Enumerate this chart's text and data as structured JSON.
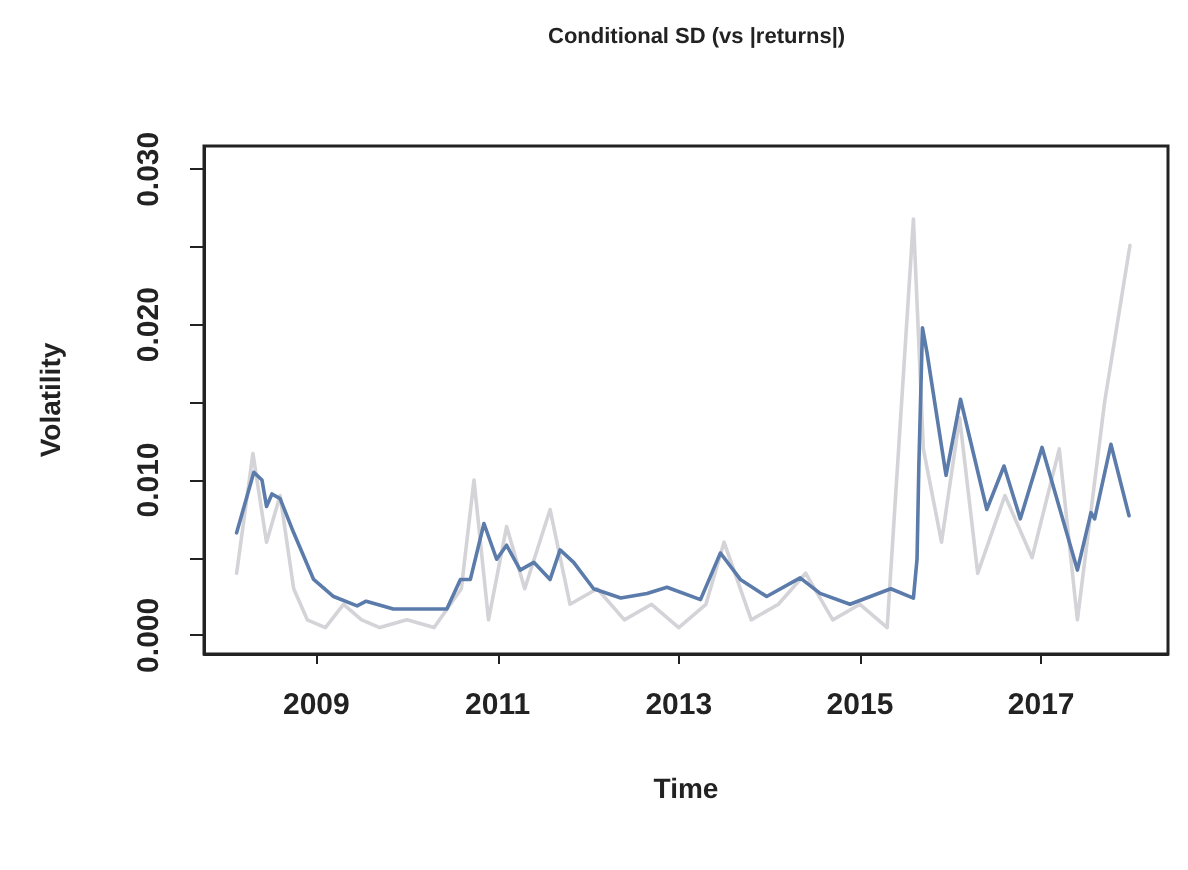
{
  "chart_data": {
    "type": "line",
    "title": "Conditional SD (vs |returns|)",
    "xlabel": "Time",
    "ylabel": "Volatility",
    "xlim": [
      2007.76,
      2018.4
    ],
    "xticks": [
      2009,
      2011,
      2013,
      2015,
      2017
    ],
    "ylim": [
      -0.0012,
      0.0315
    ],
    "yticks": [
      {
        "value": 0,
        "label": "0.000"
      },
      {
        "value": 0.005,
        "label": null
      },
      {
        "value": 0.01,
        "label": "0.010"
      },
      {
        "value": 0.015,
        "label": null
      },
      {
        "value": 0.02,
        "label": "0.020"
      },
      {
        "value": 0.025,
        "label": null
      },
      {
        "value": 0.03,
        "label": "0.030"
      }
    ],
    "grid": false,
    "marker": "none",
    "line_style": "solid",
    "series": [
      {
        "color": "#d4d4d8",
        "x": [
          2008.12,
          2008.3,
          2008.45,
          2008.6,
          2008.75,
          2008.9,
          2009.1,
          2009.3,
          2009.5,
          2009.7,
          2010.0,
          2010.3,
          2010.6,
          2010.74,
          2010.9,
          2011.1,
          2011.3,
          2011.58,
          2011.8,
          2012.1,
          2012.4,
          2012.7,
          2013.0,
          2013.3,
          2013.5,
          2013.8,
          2014.1,
          2014.4,
          2014.7,
          2015.0,
          2015.3,
          2015.59,
          2015.7,
          2015.9,
          2016.1,
          2016.3,
          2016.6,
          2016.9,
          2017.2,
          2017.4,
          2017.7,
          2017.98
        ],
        "values": [
          0.004,
          0.0117,
          0.006,
          0.009,
          0.003,
          0.001,
          0.0005,
          0.002,
          0.001,
          0.0005,
          0.001,
          0.0005,
          0.003,
          0.01,
          0.001,
          0.007,
          0.003,
          0.0081,
          0.002,
          0.003,
          0.001,
          0.002,
          0.0005,
          0.002,
          0.006,
          0.001,
          0.002,
          0.004,
          0.001,
          0.002,
          0.0005,
          0.0268,
          0.012,
          0.006,
          0.014,
          0.004,
          0.009,
          0.005,
          0.012,
          0.001,
          0.015,
          0.0251
        ]
      },
      {
        "color": "#5b7bab",
        "x": [
          2008.12,
          2008.31,
          2008.4,
          2008.45,
          2008.51,
          2008.6,
          2008.75,
          2008.97,
          2009.19,
          2009.45,
          2009.55,
          2009.85,
          2010.44,
          2010.59,
          2010.7,
          2010.85,
          2010.99,
          2011.1,
          2011.25,
          2011.4,
          2011.58,
          2011.69,
          2011.84,
          2012.06,
          2012.36,
          2012.65,
          2012.87,
          2013.24,
          2013.46,
          2013.68,
          2013.97,
          2014.34,
          2014.56,
          2014.89,
          2015.34,
          2015.59,
          2015.63,
          2015.65,
          2015.69,
          2015.74,
          2015.95,
          2016.11,
          2016.4,
          2016.59,
          2016.77,
          2017.01,
          2017.4,
          2017.55,
          2017.59,
          2017.77,
          2017.97
        ],
        "values": [
          0.0066,
          0.0105,
          0.01,
          0.0083,
          0.0091,
          0.0088,
          0.0066,
          0.0036,
          0.0025,
          0.0019,
          0.0022,
          0.0017,
          0.0017,
          0.0036,
          0.0036,
          0.0072,
          0.0049,
          0.0058,
          0.0042,
          0.0047,
          0.0036,
          0.0055,
          0.0047,
          0.003,
          0.0024,
          0.0027,
          0.0031,
          0.0023,
          0.0053,
          0.0036,
          0.0025,
          0.0037,
          0.0027,
          0.002,
          0.003,
          0.0024,
          0.0049,
          0.0109,
          0.0198,
          0.0182,
          0.0103,
          0.0152,
          0.0081,
          0.0109,
          0.0075,
          0.0121,
          0.0042,
          0.0079,
          0.0075,
          0.0123,
          0.0077
        ]
      }
    ]
  }
}
